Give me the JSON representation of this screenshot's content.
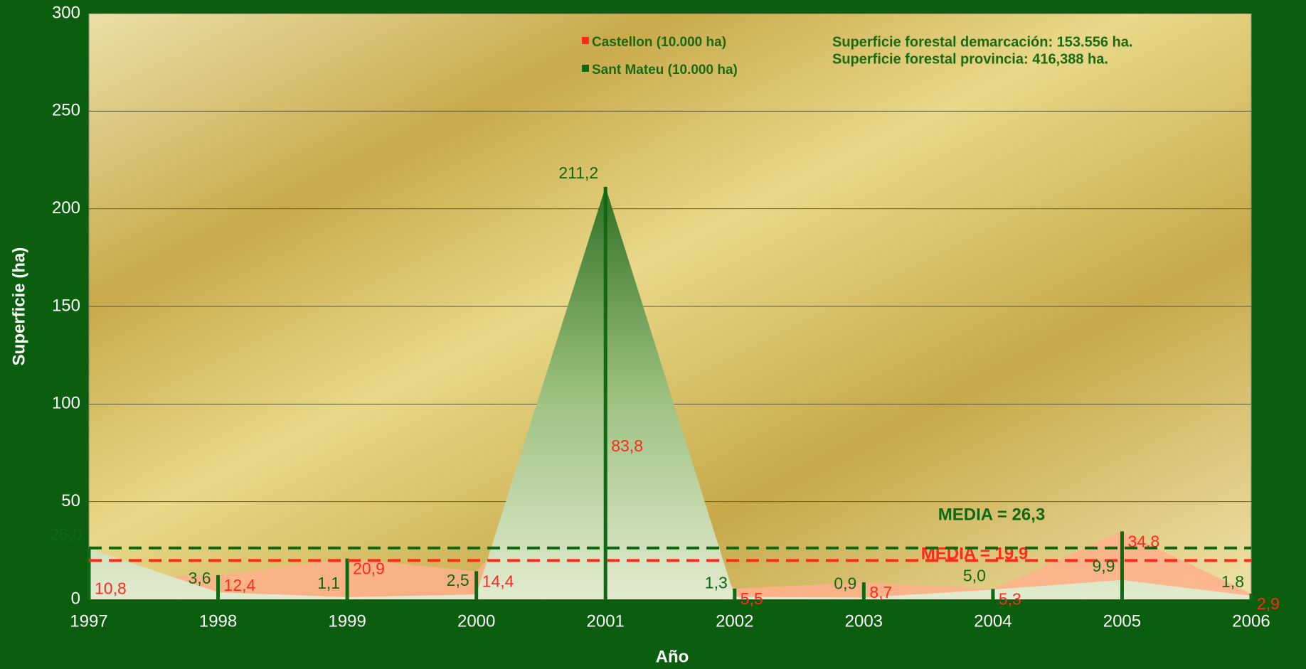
{
  "chart_data": {
    "type": "area",
    "x_label": "Año",
    "y_label": "Superficie (ha)",
    "categories": [
      "1997",
      "1998",
      "1999",
      "2000",
      "2001",
      "2002",
      "2003",
      "2004",
      "2005",
      "2006"
    ],
    "series": [
      {
        "name": "Castellon (10.000 ha)",
        "color": "#ff2a1a",
        "fill": "#ffb08c",
        "values": [
          10.8,
          12.4,
          20.9,
          14.4,
          83.8,
          5.5,
          8.7,
          5.3,
          34.8,
          2.9
        ],
        "value_labels": [
          "10,8",
          "12,4",
          "20,9",
          "14,4",
          "83,8",
          "5,5",
          "8,7",
          "5,3",
          "34,8",
          "2,9"
        ],
        "mean": 19.9,
        "mean_label": "MEDIA = 19,9"
      },
      {
        "name": "Sant Mateu (10.000 ha)",
        "color": "#0e6a12",
        "fill": "#3f7f30",
        "values": [
          26.0,
          3.6,
          1.1,
          2.5,
          211.2,
          1.3,
          0.9,
          5.0,
          9.9,
          1.8
        ],
        "value_labels": [
          "26,0",
          "3,6",
          "1,1",
          "2,5",
          "211,2",
          "1,3",
          "0,9",
          "5,0",
          "9,9",
          "1,8"
        ],
        "mean": 26.3,
        "mean_label": "MEDIA = 26,3"
      }
    ],
    "annotations": [
      "Superficie forestal demarcación: 153.556 ha.",
      "Superficie forestal provincia: 416,388 ha."
    ],
    "ylim": [
      0,
      300
    ],
    "yticks": [
      0,
      50,
      100,
      150,
      200,
      250,
      300
    ],
    "grid": true,
    "legend": "top"
  }
}
